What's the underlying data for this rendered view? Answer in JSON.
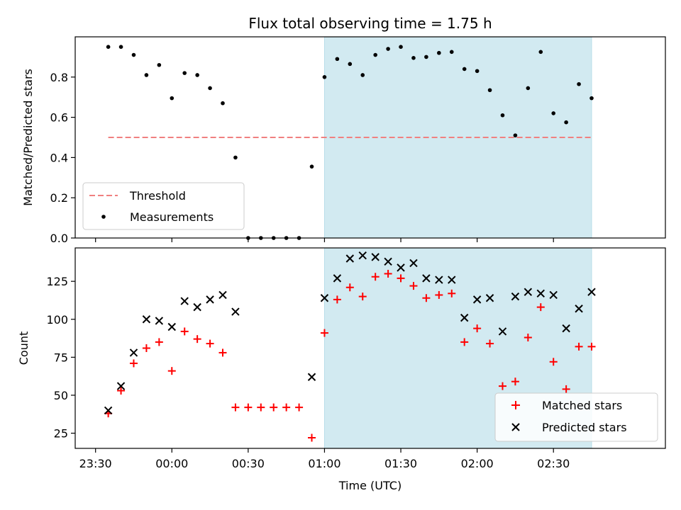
{
  "figure": {
    "title": "Flux total observing time = 1.75 h",
    "xlabel": "Time (UTC)",
    "colors": {
      "shade": "#add8e6",
      "threshold": "#f08080",
      "measurement": "#000000",
      "matched": "#ff0000",
      "predicted": "#000000"
    }
  },
  "chart_data": [
    {
      "type": "scatter",
      "panel": "top",
      "ylabel": "Matched/Predicted stars",
      "xlim": [
        "23:22",
        "03:14"
      ],
      "ylim": [
        0,
        1.0
      ],
      "yticks": [
        0.0,
        0.2,
        0.4,
        0.6,
        0.8
      ],
      "ytick_labels": [
        "0.0",
        "0.2",
        "0.4",
        "0.6",
        "0.8"
      ],
      "shaded_region": {
        "from": "01:00",
        "to": "02:45"
      },
      "legend": {
        "position": "lower-left",
        "entries": [
          "Threshold",
          "Measurements"
        ]
      },
      "threshold": {
        "name": "Threshold",
        "value": 0.5,
        "from": "23:35",
        "to": "02:45"
      },
      "series": [
        {
          "name": "Measurements",
          "x": [
            "23:35",
            "23:40",
            "23:45",
            "23:50",
            "23:55",
            "00:00",
            "00:05",
            "00:10",
            "00:15",
            "00:20",
            "00:25",
            "00:30",
            "00:35",
            "00:40",
            "00:45",
            "00:50",
            "00:55",
            "01:00",
            "01:05",
            "01:10",
            "01:15",
            "01:20",
            "01:25",
            "01:30",
            "01:35",
            "01:40",
            "01:45",
            "01:50",
            "01:55",
            "02:00",
            "02:05",
            "02:10",
            "02:15",
            "02:20",
            "02:25",
            "02:30",
            "02:35",
            "02:40",
            "02:45"
          ],
          "y": [
            0.95,
            0.95,
            0.91,
            0.81,
            0.86,
            0.695,
            0.82,
            0.81,
            0.745,
            0.67,
            0.4,
            0.0,
            0.0,
            0.0,
            0.0,
            0.0,
            0.355,
            0.8,
            0.89,
            0.865,
            0.81,
            0.91,
            0.94,
            0.95,
            0.895,
            0.9,
            0.92,
            0.925,
            0.84,
            0.83,
            0.735,
            0.61,
            0.51,
            0.745,
            0.925,
            0.62,
            0.575,
            0.765,
            0.695
          ]
        }
      ]
    },
    {
      "type": "scatter",
      "panel": "bottom",
      "ylabel": "Count",
      "xlabel": "Time (UTC)",
      "xlim": [
        "23:22",
        "03:14"
      ],
      "ylim": [
        15,
        147
      ],
      "yticks": [
        25,
        50,
        75,
        100,
        125
      ],
      "ytick_labels": [
        "25",
        "50",
        "75",
        "100",
        "125"
      ],
      "xticks": [
        "23:30",
        "00:00",
        "00:30",
        "01:00",
        "01:30",
        "02:00",
        "02:30"
      ],
      "shaded_region": {
        "from": "01:00",
        "to": "02:45"
      },
      "legend": {
        "position": "lower-right",
        "entries": [
          "Matched stars",
          "Predicted stars"
        ]
      },
      "series": [
        {
          "name": "Matched stars",
          "marker": "+",
          "x": [
            "23:35",
            "23:40",
            "23:45",
            "23:50",
            "23:55",
            "00:00",
            "00:05",
            "00:10",
            "00:15",
            "00:20",
            "00:25",
            "00:30",
            "00:35",
            "00:40",
            "00:45",
            "00:50",
            "00:55",
            "01:00",
            "01:05",
            "01:10",
            "01:15",
            "01:20",
            "01:25",
            "01:30",
            "01:35",
            "01:40",
            "01:45",
            "01:50",
            "01:55",
            "02:00",
            "02:05",
            "02:10",
            "02:15",
            "02:20",
            "02:25",
            "02:30",
            "02:35",
            "02:40",
            "02:45"
          ],
          "y": [
            38,
            53,
            71,
            81,
            85,
            66,
            92,
            87,
            84,
            78,
            42,
            42,
            42,
            42,
            42,
            42,
            22,
            91,
            113,
            121,
            115,
            128,
            130,
            127,
            122,
            114,
            116,
            117,
            85,
            94,
            84,
            56,
            59,
            88,
            108,
            72,
            54,
            82,
            82
          ]
        },
        {
          "name": "Predicted stars",
          "marker": "x",
          "x": [
            "23:35",
            "23:40",
            "23:45",
            "23:50",
            "23:55",
            "00:00",
            "00:05",
            "00:10",
            "00:15",
            "00:20",
            "00:25",
            "00:55",
            "01:00",
            "01:05",
            "01:10",
            "01:15",
            "01:20",
            "01:25",
            "01:30",
            "01:35",
            "01:40",
            "01:45",
            "01:50",
            "01:55",
            "02:00",
            "02:05",
            "02:10",
            "02:15",
            "02:20",
            "02:25",
            "02:30",
            "02:35",
            "02:40",
            "02:45"
          ],
          "y": [
            40,
            56,
            78,
            100,
            99,
            95,
            112,
            108,
            113,
            116,
            105,
            62,
            114,
            127,
            140,
            142,
            141,
            138,
            134,
            137,
            127,
            126,
            126,
            101,
            113,
            114,
            92,
            115,
            118,
            117,
            116,
            94,
            107,
            118
          ]
        }
      ]
    }
  ]
}
